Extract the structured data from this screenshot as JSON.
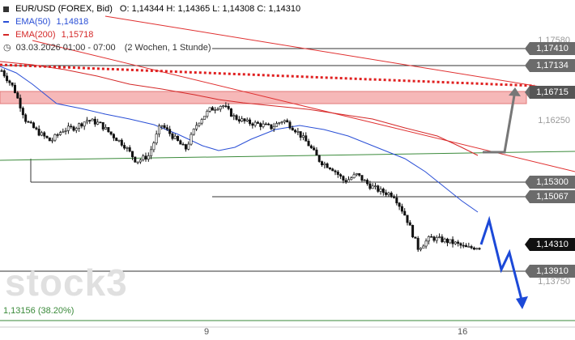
{
  "header": {
    "instrument": "EUR/USD (FOREX, Bid)",
    "ohlc": "O: 1,14344  H: 1,14365  L: 1,14308  C: 1,14310",
    "ema50_label": "EMA(50)",
    "ema50_value": "1,14818",
    "ema200_label": "EMA(200)",
    "ema200_value": "1,15718",
    "timestamp": "03.03.2026 01:00 - 07:00",
    "period": "(2 Wochen, 1 Stunde)"
  },
  "watermark": "stock3",
  "price_labels": [
    {
      "text": "1,17580",
      "boxed": false
    },
    {
      "text": "1,17410",
      "boxed": true,
      "type": "level"
    },
    {
      "text": "1,17134",
      "boxed": true,
      "type": "level"
    },
    {
      "text": "1,16715",
      "boxed": true,
      "type": "highlight"
    },
    {
      "text": "1,16250",
      "boxed": false
    },
    {
      "text": "1,15300",
      "boxed": true,
      "type": "level"
    },
    {
      "text": "1,15067",
      "boxed": true,
      "type": "level"
    },
    {
      "text": "1,14310",
      "boxed": true,
      "type": "current"
    },
    {
      "text": "1,13910",
      "boxed": true,
      "type": "level"
    },
    {
      "text": "1,13750",
      "boxed": false
    }
  ],
  "fib_label": "1,13156 (38.20%)",
  "x_ticks": [
    "9",
    "16"
  ],
  "colors": {
    "ema50": "#2a4fd6",
    "ema200": "#d42828",
    "trend": "#e03030",
    "support": "#3a8a3a",
    "zone_fill": "#f6b8b8",
    "candle": "#111111",
    "projection_up": "#777777",
    "projection_down": "#1c49d8"
  },
  "chart_data": {
    "type": "candlestick",
    "title": "EUR/USD (FOREX, Bid)",
    "timeframe": "1 Stunde",
    "range": "2 Wochen",
    "last": {
      "open": 1.14344,
      "high": 1.14365,
      "low": 1.14308,
      "close": 1.1431
    },
    "y_ticks": [
      1.1758,
      1.1625,
      1.1375
    ],
    "x_ticks": [
      "9",
      "16"
    ],
    "horizontal_levels": [
      1.1741,
      1.17134,
      1.153,
      1.15067,
      1.1391,
      1.13156
    ],
    "resistance_zone": [
      1.1665,
      1.1688
    ],
    "approx_close_path": [
      1.171,
      1.1682,
      1.163,
      1.1612,
      1.1598,
      1.1616,
      1.162,
      1.1632,
      1.1626,
      1.1608,
      1.1592,
      1.1566,
      1.1575,
      1.1625,
      1.1605,
      1.1585,
      1.1628,
      1.1648,
      1.1656,
      1.1636,
      1.1628,
      1.1625,
      1.162,
      1.1632,
      1.1616,
      1.1594,
      1.1566,
      1.1555,
      1.1534,
      1.1545,
      1.1528,
      1.1518,
      1.1513,
      1.1478,
      1.1428,
      1.1445,
      1.1441,
      1.1436,
      1.1428,
      1.1431
    ]
  }
}
